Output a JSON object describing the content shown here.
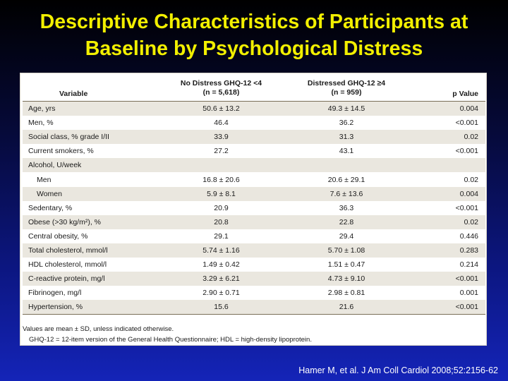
{
  "slide": {
    "title_line1": "Descriptive Characteristics of Participants at",
    "title_line2": "Baseline by Psychological Distress",
    "citation": "Hamer M, et al. J Am Coll Cardiol 2008;52:2156-62"
  },
  "table": {
    "headers": {
      "variable": "Variable",
      "group1_line1": "No Distress GHQ-12 <4",
      "group1_line2": "(n = 5,618)",
      "group2_line1": "Distressed GHQ-12 ≥4",
      "group2_line2": "(n = 959)",
      "pvalue": "p Value"
    },
    "rows": [
      {
        "label": "Age, yrs",
        "no_distress": "50.6 ± 13.2",
        "distressed": "49.3 ± 14.5",
        "p": "0.004"
      },
      {
        "label": "Men, %",
        "no_distress": "46.4",
        "distressed": "36.2",
        "p": "<0.001"
      },
      {
        "label": "Social class, % grade I/II",
        "no_distress": "33.9",
        "distressed": "31.3",
        "p": "0.02"
      },
      {
        "label": "Current smokers, %",
        "no_distress": "27.2",
        "distressed": "43.1",
        "p": "<0.001"
      },
      {
        "label": "Alcohol, U/week",
        "no_distress": "",
        "distressed": "",
        "p": ""
      },
      {
        "label": "Men",
        "no_distress": "16.8 ± 20.6",
        "distressed": "20.6 ± 29.1",
        "p": "0.02"
      },
      {
        "label": "Women",
        "no_distress": "5.9 ± 8.1",
        "distressed": "7.6 ± 13.6",
        "p": "0.004"
      },
      {
        "label": "Sedentary, %",
        "no_distress": "20.9",
        "distressed": "36.3",
        "p": "<0.001"
      },
      {
        "label": "Obese (>30 kg/m²), %",
        "no_distress": "20.8",
        "distressed": "22.8",
        "p": "0.02"
      },
      {
        "label": "Central obesity, %",
        "no_distress": "29.1",
        "distressed": "29.4",
        "p": "0.446"
      },
      {
        "label": "Total cholesterol, mmol/l",
        "no_distress": "5.74 ± 1.16",
        "distressed": "5.70 ± 1.08",
        "p": "0.283"
      },
      {
        "label": "HDL cholesterol, mmol/l",
        "no_distress": "1.49 ± 0.42",
        "distressed": "1.51 ± 0.47",
        "p": "0.214"
      },
      {
        "label": "C-reactive protein, mg/l",
        "no_distress": "3.29 ± 6.21",
        "distressed": "4.73 ± 9.10",
        "p": "<0.001"
      },
      {
        "label": "Fibrinogen, mg/l",
        "no_distress": "2.90 ± 0.71",
        "distressed": "2.98 ± 0.81",
        "p": "0.001"
      },
      {
        "label": "Hypertension, %",
        "no_distress": "15.6",
        "distressed": "21.6",
        "p": "<0.001"
      }
    ],
    "footnote1": "Values are mean ± SD, unless indicated otherwise.",
    "footnote2": "GHQ-12 = 12-item version of the General Health Questionnaire; HDL = high-density lipoprotein."
  }
}
